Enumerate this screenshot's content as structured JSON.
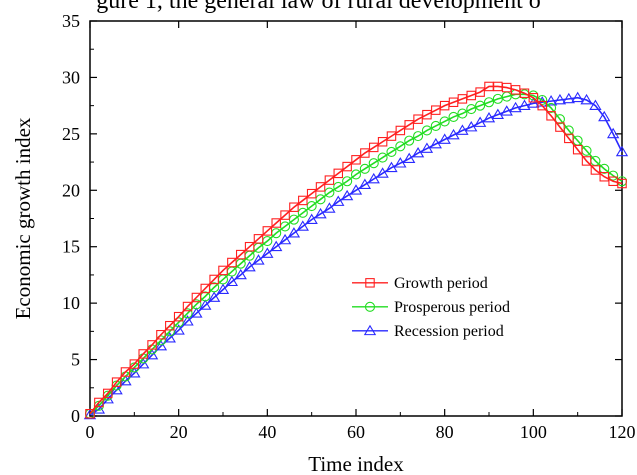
{
  "caption": "gure 1, the general law of rural development o",
  "chart_data": {
    "type": "line",
    "title": "",
    "xlabel": "Time index",
    "ylabel": "Economic growth index",
    "xlim": [
      0,
      120
    ],
    "ylim": [
      0,
      35
    ],
    "xticks": [
      0,
      20,
      40,
      60,
      80,
      100,
      120
    ],
    "yticks": [
      0,
      5,
      10,
      15,
      20,
      25,
      30,
      35
    ],
    "legend_position": "center-right",
    "grid": false,
    "series": [
      {
        "name": "Growth period",
        "color": "#ff2020",
        "marker": "square",
        "x": [
          0,
          2,
          4,
          6,
          8,
          10,
          12,
          14,
          16,
          18,
          20,
          22,
          24,
          26,
          28,
          30,
          32,
          34,
          36,
          38,
          40,
          42,
          44,
          46,
          48,
          50,
          52,
          54,
          56,
          58,
          60,
          62,
          64,
          66,
          68,
          70,
          72,
          74,
          76,
          78,
          80,
          82,
          84,
          86,
          88,
          90,
          92,
          94,
          96,
          98,
          100,
          102,
          104,
          106,
          108,
          110,
          112,
          114,
          116,
          118,
          120
        ],
        "y": [
          0.2,
          1.2,
          2.0,
          3.0,
          3.9,
          4.6,
          5.5,
          6.3,
          7.2,
          8.0,
          8.8,
          9.7,
          10.5,
          11.3,
          12.1,
          12.9,
          13.6,
          14.3,
          15.0,
          15.7,
          16.4,
          17.1,
          17.8,
          18.5,
          19.1,
          19.7,
          20.3,
          20.9,
          21.5,
          22.1,
          22.7,
          23.3,
          23.8,
          24.3,
          24.8,
          25.3,
          25.8,
          26.3,
          26.7,
          27.1,
          27.5,
          27.8,
          28.1,
          28.4,
          28.7,
          29.2,
          29.2,
          29.1,
          28.9,
          28.6,
          28.2,
          27.5,
          26.6,
          25.6,
          24.6,
          23.6,
          22.6,
          21.8,
          21.2,
          20.8,
          20.6
        ]
      },
      {
        "name": "Prosperous period",
        "color": "#22dd22",
        "marker": "circle",
        "x": [
          0,
          2,
          4,
          6,
          8,
          10,
          12,
          14,
          16,
          18,
          20,
          22,
          24,
          26,
          28,
          30,
          32,
          34,
          36,
          38,
          40,
          42,
          44,
          46,
          48,
          50,
          52,
          54,
          56,
          58,
          60,
          62,
          64,
          66,
          68,
          70,
          72,
          74,
          76,
          78,
          80,
          82,
          84,
          86,
          88,
          90,
          92,
          94,
          96,
          98,
          100,
          102,
          104,
          106,
          108,
          110,
          112,
          114,
          116,
          118,
          120
        ],
        "y": [
          0.2,
          0.9,
          1.8,
          2.7,
          3.5,
          4.3,
          5.1,
          5.9,
          6.7,
          7.5,
          8.3,
          9.1,
          9.9,
          10.6,
          11.4,
          12.1,
          12.8,
          13.5,
          14.2,
          14.9,
          15.5,
          16.2,
          16.8,
          17.4,
          18.0,
          18.6,
          19.2,
          19.8,
          20.3,
          20.8,
          21.4,
          21.9,
          22.4,
          22.9,
          23.4,
          23.9,
          24.4,
          24.8,
          25.3,
          25.7,
          26.1,
          26.5,
          26.8,
          27.2,
          27.5,
          27.8,
          28.1,
          28.3,
          28.5,
          28.5,
          28.4,
          28.0,
          27.3,
          26.3,
          25.3,
          24.4,
          23.5,
          22.6,
          21.9,
          21.3,
          20.8
        ]
      },
      {
        "name": "Recession period",
        "color": "#2a2aff",
        "marker": "triangle",
        "x": [
          0,
          2,
          4,
          6,
          8,
          10,
          12,
          14,
          16,
          18,
          20,
          22,
          24,
          26,
          28,
          30,
          32,
          34,
          36,
          38,
          40,
          42,
          44,
          46,
          48,
          50,
          52,
          54,
          56,
          58,
          60,
          62,
          64,
          66,
          68,
          70,
          72,
          74,
          76,
          78,
          80,
          82,
          84,
          86,
          88,
          90,
          92,
          94,
          96,
          98,
          100,
          102,
          104,
          106,
          108,
          110,
          112,
          114,
          116,
          118,
          120
        ],
        "y": [
          0.1,
          0.6,
          1.5,
          2.3,
          3.1,
          3.8,
          4.6,
          5.4,
          6.2,
          6.9,
          7.6,
          8.4,
          9.1,
          9.8,
          10.5,
          11.2,
          11.9,
          12.5,
          13.2,
          13.8,
          14.4,
          15.0,
          15.6,
          16.2,
          16.8,
          17.4,
          17.9,
          18.4,
          19.0,
          19.5,
          20.0,
          20.5,
          21.0,
          21.5,
          22.0,
          22.4,
          22.8,
          23.3,
          23.7,
          24.1,
          24.5,
          24.9,
          25.3,
          25.6,
          26.0,
          26.4,
          26.7,
          27.0,
          27.3,
          27.5,
          27.7,
          27.8,
          27.9,
          28.0,
          28.1,
          28.2,
          28.0,
          27.5,
          26.5,
          25.0,
          23.4
        ]
      }
    ]
  }
}
